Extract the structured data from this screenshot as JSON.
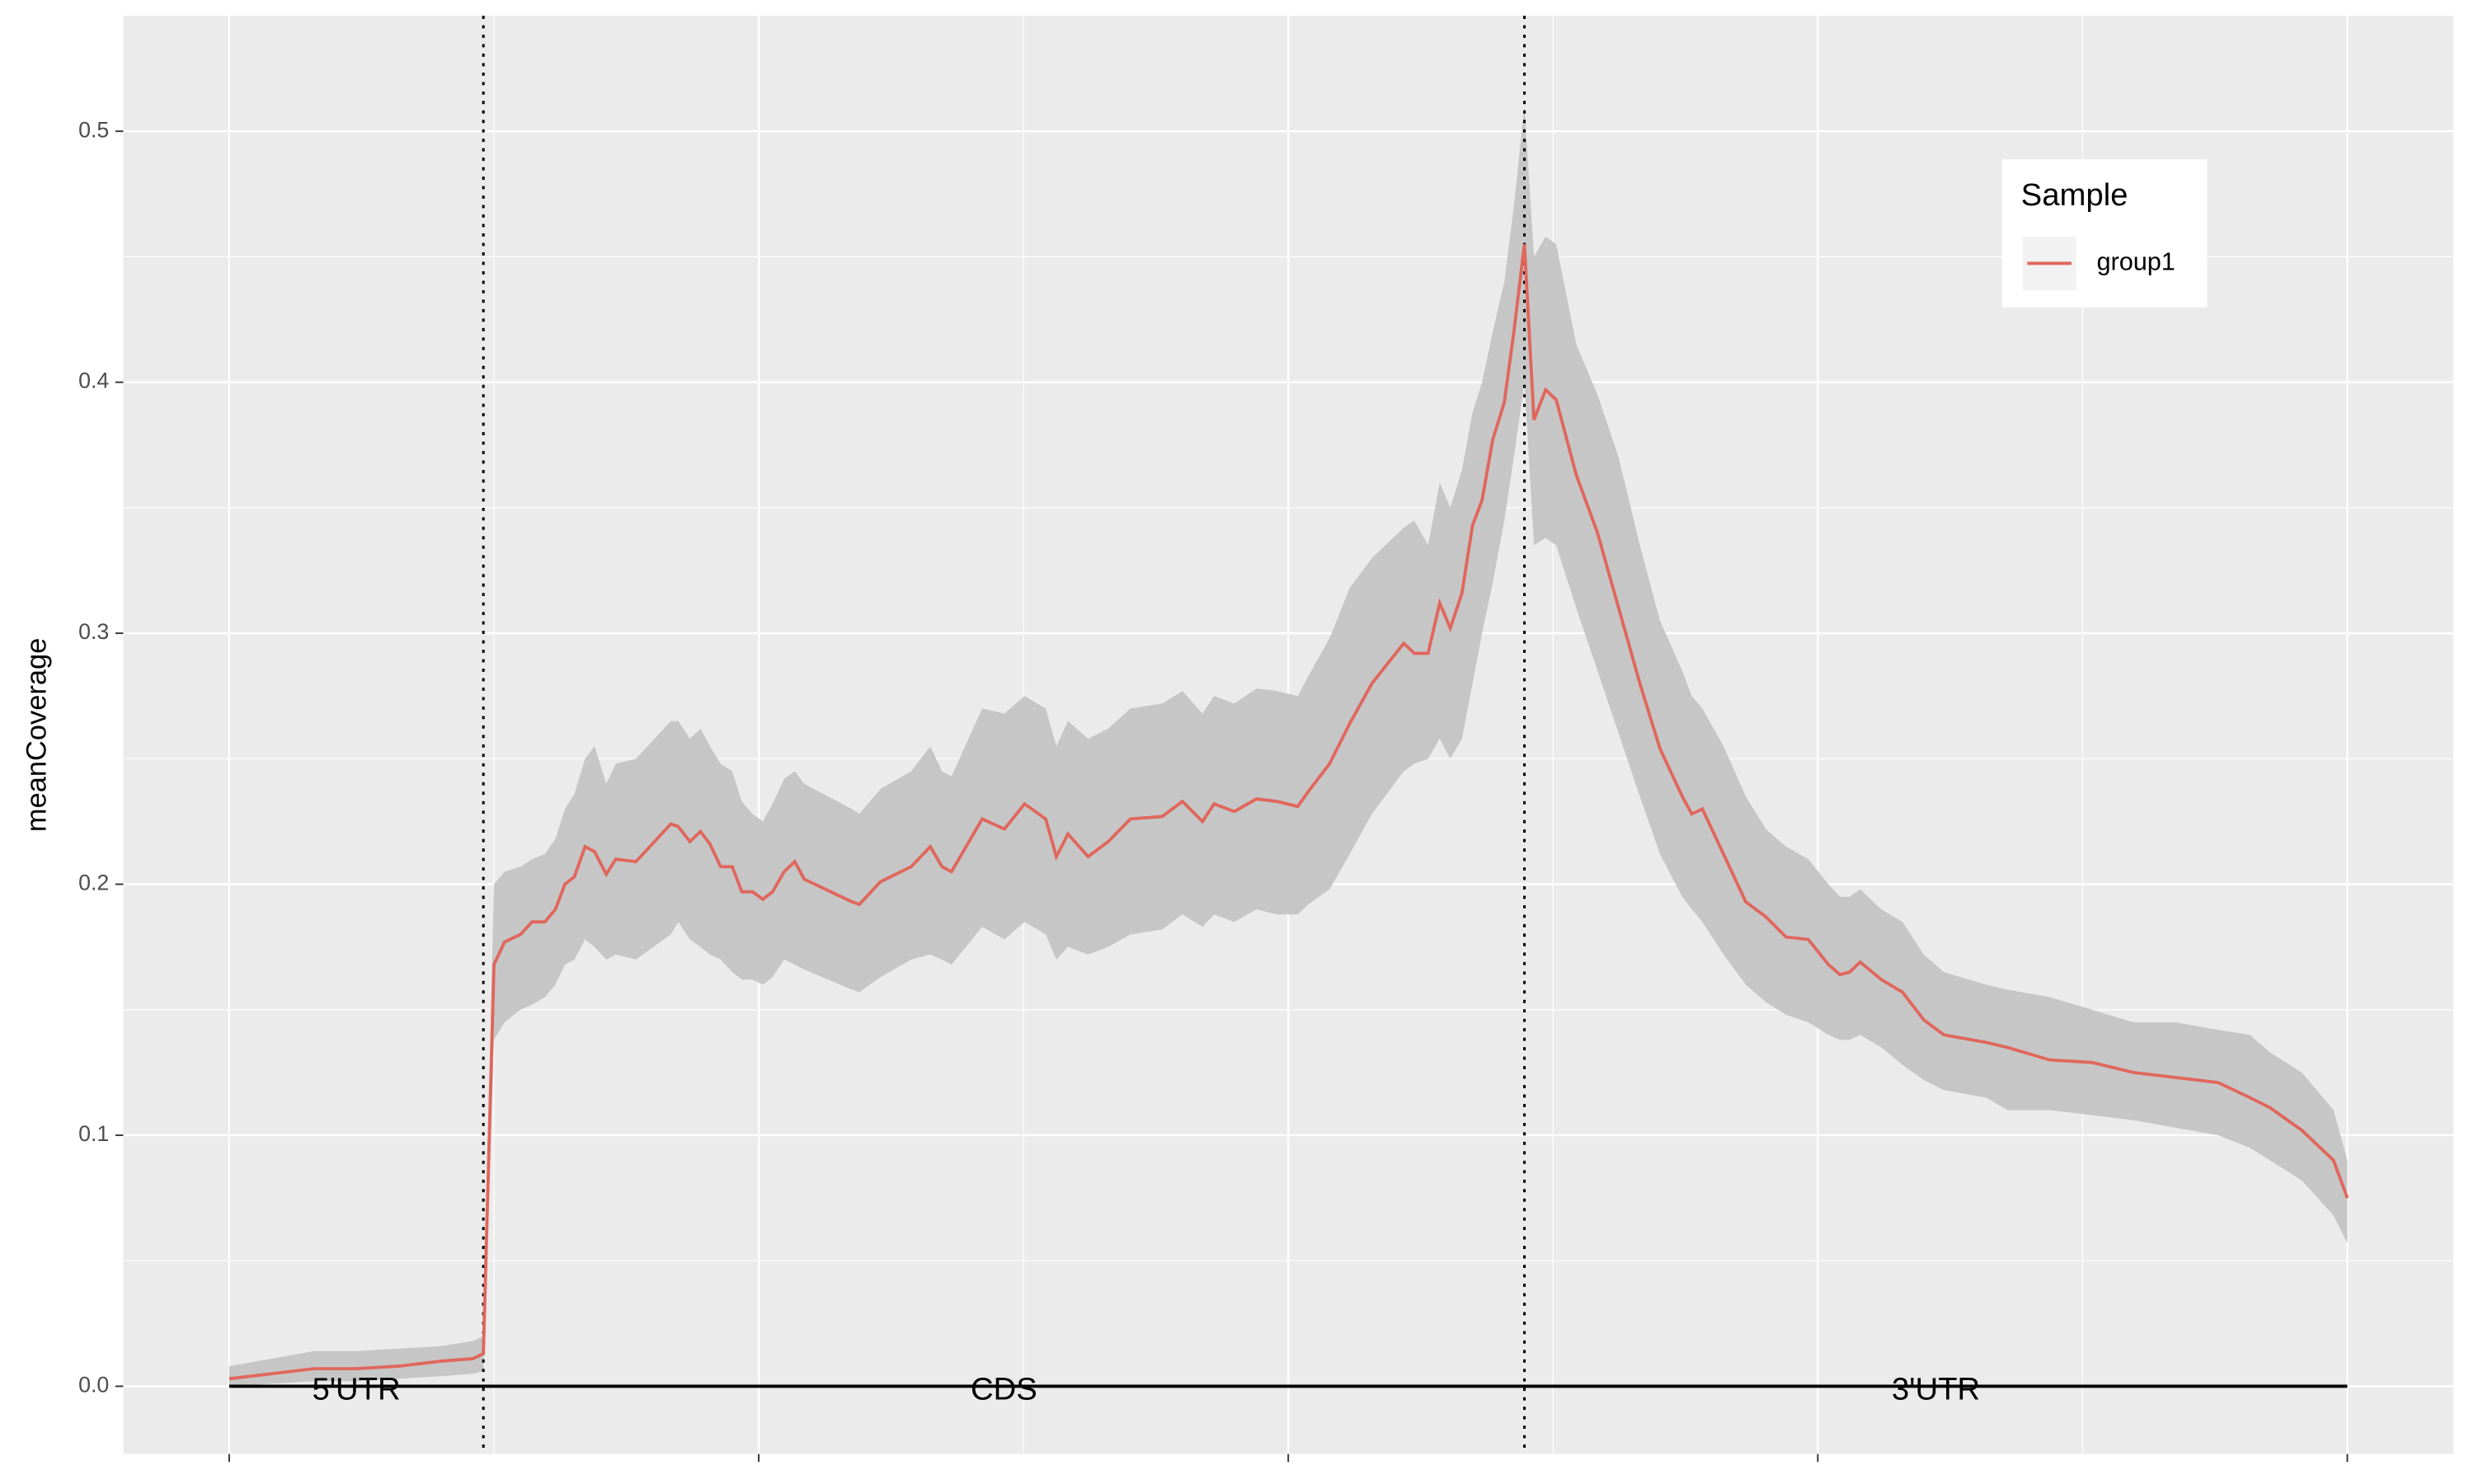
{
  "chart_data": {
    "type": "line",
    "ylabel": "meanCoverage",
    "x": [
      0,
      4,
      8,
      12,
      16,
      20,
      23,
      24,
      25,
      26,
      27.5,
      28.6,
      29.8,
      30.8,
      31.7,
      32.6,
      33.6,
      34.5,
      35.6,
      36.5,
      38.4,
      41.7,
      42.4,
      43.5,
      44.5,
      45.4,
      46.4,
      47.5,
      48.4,
      49.4,
      50.4,
      51.3,
      52.4,
      53.4,
      54.3,
      58.8,
      59.5,
      61.5,
      64.4,
      66.2,
      67.3,
      68.2,
      71.1,
      73.2,
      75.1,
      77.1,
      78.1,
      79.2,
      81.1,
      83,
      85.1,
      88.1,
      90,
      91.9,
      93,
      94.9,
      97,
      98.9,
      100.9,
      101.9,
      103.9,
      105.8,
      107.9,
      110.9,
      111.9,
      113.2,
      114.3,
      115.3,
      116.4,
      117.4,
      118.3,
      119.3,
      120.4,
      121.3,
      122.3,
      123.2,
      124.3,
      125.3,
      127.2,
      129.2,
      131.2,
      133.2,
      135.1,
      137.2,
      138.1,
      139.1,
      141.1,
      143.2,
      145.1,
      147,
      149.1,
      151,
      152.1,
      153,
      154,
      156,
      158,
      160,
      161.9,
      165.9,
      167.9,
      171.9,
      175.9,
      179.8,
      183.8,
      187.8,
      190.8,
      192.7,
      195.7,
      198.7,
      200
    ],
    "series": [
      {
        "name": "group1",
        "color": "#e0665c",
        "band_color": "#c6c6c6",
        "values": [
          0.003,
          0.005,
          0.007,
          0.007,
          0.008,
          0.01,
          0.011,
          0.013,
          0.168,
          0.177,
          0.18,
          0.185,
          0.185,
          0.19,
          0.2,
          0.203,
          0.215,
          0.213,
          0.204,
          0.21,
          0.209,
          0.224,
          0.223,
          0.217,
          0.221,
          0.216,
          0.207,
          0.207,
          0.197,
          0.197,
          0.194,
          0.197,
          0.205,
          0.209,
          0.202,
          0.193,
          0.192,
          0.201,
          0.207,
          0.215,
          0.207,
          0.205,
          0.226,
          0.222,
          0.232,
          0.226,
          0.211,
          0.22,
          0.211,
          0.217,
          0.226,
          0.227,
          0.233,
          0.225,
          0.232,
          0.229,
          0.234,
          0.233,
          0.231,
          0.237,
          0.248,
          0.264,
          0.28,
          0.296,
          0.292,
          0.292,
          0.312,
          0.302,
          0.316,
          0.343,
          0.353,
          0.377,
          0.392,
          0.42,
          0.455,
          0.385,
          0.397,
          0.393,
          0.363,
          0.34,
          0.31,
          0.28,
          0.254,
          0.235,
          0.228,
          0.23,
          0.212,
          0.193,
          0.187,
          0.179,
          0.178,
          0.168,
          0.164,
          0.165,
          0.169,
          0.162,
          0.157,
          0.146,
          0.14,
          0.137,
          0.135,
          0.13,
          0.129,
          0.125,
          0.123,
          0.121,
          0.115,
          0.111,
          0.102,
          0.09,
          0.075
        ],
        "lower": [
          0.0,
          0.001,
          0.002,
          0.002,
          0.003,
          0.004,
          0.005,
          0.006,
          0.138,
          0.145,
          0.15,
          0.152,
          0.155,
          0.16,
          0.168,
          0.17,
          0.178,
          0.175,
          0.17,
          0.172,
          0.17,
          0.18,
          0.185,
          0.178,
          0.175,
          0.172,
          0.17,
          0.165,
          0.162,
          0.162,
          0.16,
          0.163,
          0.17,
          0.168,
          0.166,
          0.158,
          0.157,
          0.163,
          0.17,
          0.172,
          0.17,
          0.168,
          0.183,
          0.178,
          0.185,
          0.18,
          0.17,
          0.175,
          0.172,
          0.175,
          0.18,
          0.182,
          0.188,
          0.183,
          0.188,
          0.185,
          0.19,
          0.188,
          0.188,
          0.192,
          0.198,
          0.212,
          0.228,
          0.245,
          0.248,
          0.25,
          0.258,
          0.25,
          0.258,
          0.28,
          0.3,
          0.32,
          0.345,
          0.37,
          0.4,
          0.335,
          0.338,
          0.335,
          0.31,
          0.285,
          0.26,
          0.235,
          0.212,
          0.195,
          0.19,
          0.185,
          0.172,
          0.16,
          0.153,
          0.148,
          0.145,
          0.14,
          0.138,
          0.138,
          0.14,
          0.135,
          0.128,
          0.122,
          0.118,
          0.115,
          0.11,
          0.11,
          0.108,
          0.106,
          0.103,
          0.1,
          0.095,
          0.09,
          0.082,
          0.068,
          0.057
        ],
        "upper": [
          0.008,
          0.011,
          0.014,
          0.014,
          0.015,
          0.016,
          0.018,
          0.02,
          0.2,
          0.205,
          0.207,
          0.21,
          0.212,
          0.218,
          0.23,
          0.236,
          0.25,
          0.255,
          0.24,
          0.248,
          0.25,
          0.265,
          0.265,
          0.258,
          0.262,
          0.255,
          0.248,
          0.245,
          0.233,
          0.228,
          0.225,
          0.232,
          0.242,
          0.245,
          0.24,
          0.23,
          0.228,
          0.238,
          0.245,
          0.255,
          0.245,
          0.243,
          0.27,
          0.268,
          0.275,
          0.27,
          0.255,
          0.265,
          0.258,
          0.262,
          0.27,
          0.272,
          0.277,
          0.268,
          0.275,
          0.272,
          0.278,
          0.277,
          0.275,
          0.283,
          0.298,
          0.318,
          0.33,
          0.342,
          0.345,
          0.335,
          0.36,
          0.35,
          0.365,
          0.388,
          0.4,
          0.42,
          0.44,
          0.47,
          0.51,
          0.45,
          0.458,
          0.455,
          0.415,
          0.395,
          0.37,
          0.335,
          0.305,
          0.285,
          0.275,
          0.27,
          0.255,
          0.235,
          0.222,
          0.215,
          0.21,
          0.2,
          0.195,
          0.195,
          0.198,
          0.19,
          0.185,
          0.172,
          0.165,
          0.16,
          0.158,
          0.155,
          0.15,
          0.145,
          0.145,
          0.142,
          0.14,
          0.133,
          0.125,
          0.11,
          0.09
        ]
      }
    ],
    "xlim": [
      -10,
      210
    ],
    "xticks": [
      0,
      50,
      100,
      150,
      200
    ],
    "ylim": [
      -0.027,
      0.546
    ],
    "yticks": [
      {
        "value": 0,
        "label": "0.0"
      },
      0.1,
      0.2,
      0.3,
      0.4,
      0.5
    ],
    "grid": true,
    "region_labels": [
      "5'UTR",
      "CDS",
      "3'UTR"
    ],
    "region_bounds": [
      0,
      24,
      122.3,
      200
    ],
    "legend_title": "Sample",
    "legend": "top-right"
  }
}
